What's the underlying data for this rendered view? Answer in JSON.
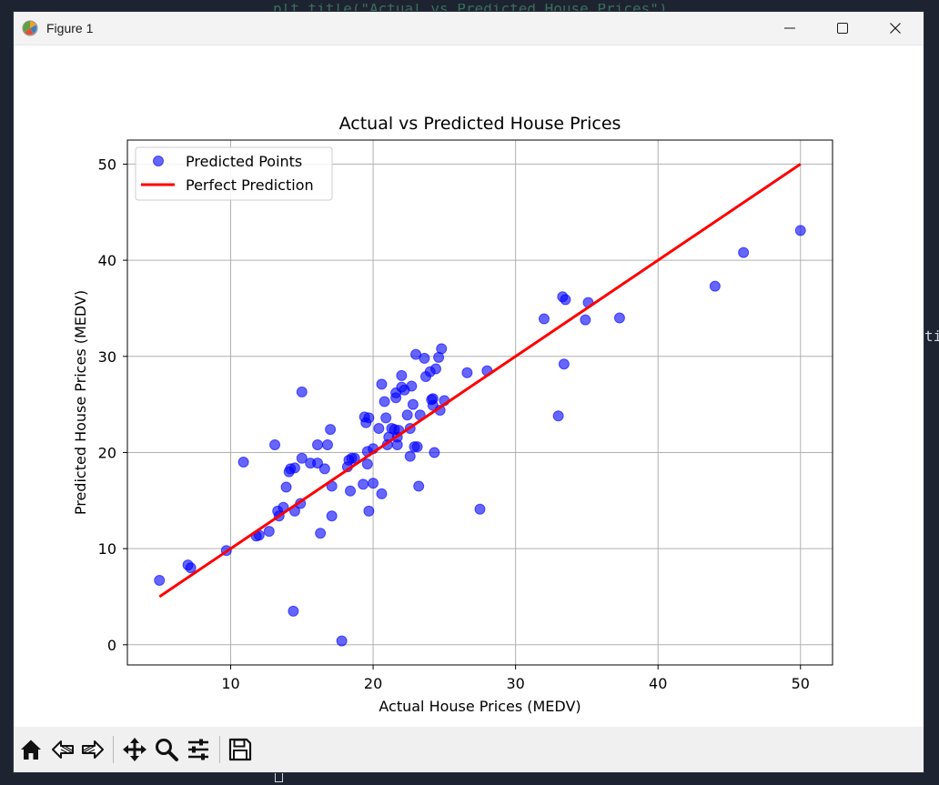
{
  "window": {
    "title": "Figure 1"
  },
  "background": {
    "code_top": "plt.title(\"Actual vs Predicted House Prices\")",
    "code_side": "ti"
  },
  "toolbar": {
    "tools": [
      "home-icon",
      "back-arrow-icon",
      "forward-arrow-icon",
      "pan-icon",
      "zoom-icon",
      "configure-subplots-icon",
      "save-icon"
    ]
  },
  "chart_data": {
    "type": "scatter",
    "title": "Actual vs Predicted House Prices",
    "xlabel": "Actual House Prices (MEDV)",
    "ylabel": "Predicted House Prices (MEDV)",
    "xlim": [
      2.75,
      52.25
    ],
    "ylim": [
      -2.1,
      52.5
    ],
    "xticks": [
      10,
      20,
      30,
      40,
      50
    ],
    "yticks": [
      0,
      10,
      20,
      30,
      40,
      50
    ],
    "grid": true,
    "legend_position": "upper-left",
    "legend": [
      {
        "label": "Predicted Points",
        "kind": "marker",
        "color": "#0000ff"
      },
      {
        "label": "Perfect Prediction",
        "kind": "line",
        "color": "#ff0000"
      }
    ],
    "series": [
      {
        "name": "Predicted Points",
        "kind": "scatter",
        "color": "#0000ff",
        "alpha": 0.6,
        "points": [
          [
            5.0,
            6.7
          ],
          [
            7.0,
            8.3
          ],
          [
            7.2,
            8.0
          ],
          [
            9.7,
            9.8
          ],
          [
            10.9,
            19.0
          ],
          [
            11.8,
            11.3
          ],
          [
            12.0,
            11.4
          ],
          [
            12.7,
            11.8
          ],
          [
            13.1,
            20.8
          ],
          [
            13.3,
            13.9
          ],
          [
            13.4,
            13.4
          ],
          [
            13.7,
            14.3
          ],
          [
            13.9,
            16.4
          ],
          [
            14.1,
            18.0
          ],
          [
            14.2,
            18.3
          ],
          [
            14.4,
            3.5
          ],
          [
            14.5,
            18.4
          ],
          [
            14.5,
            13.9
          ],
          [
            14.9,
            14.7
          ],
          [
            15.0,
            19.4
          ],
          [
            15.0,
            26.3
          ],
          [
            15.6,
            18.9
          ],
          [
            16.1,
            18.9
          ],
          [
            16.1,
            20.8
          ],
          [
            16.3,
            11.6
          ],
          [
            16.6,
            18.3
          ],
          [
            16.8,
            20.8
          ],
          [
            17.0,
            22.4
          ],
          [
            17.1,
            16.5
          ],
          [
            17.1,
            13.4
          ],
          [
            17.8,
            0.4
          ],
          [
            18.2,
            18.5
          ],
          [
            18.3,
            19.2
          ],
          [
            18.5,
            19.4
          ],
          [
            18.4,
            16.0
          ],
          [
            18.7,
            19.4
          ],
          [
            19.3,
            16.7
          ],
          [
            19.4,
            23.7
          ],
          [
            19.5,
            23.1
          ],
          [
            19.6,
            20.1
          ],
          [
            19.6,
            18.8
          ],
          [
            19.7,
            13.9
          ],
          [
            19.7,
            23.6
          ],
          [
            20.0,
            20.4
          ],
          [
            20.0,
            16.8
          ],
          [
            20.4,
            22.5
          ],
          [
            20.6,
            27.1
          ],
          [
            20.6,
            15.7
          ],
          [
            20.8,
            25.3
          ],
          [
            20.9,
            23.6
          ],
          [
            21.0,
            20.8
          ],
          [
            21.1,
            21.6
          ],
          [
            21.3,
            22.5
          ],
          [
            21.5,
            22.4
          ],
          [
            21.6,
            25.7
          ],
          [
            21.6,
            26.2
          ],
          [
            21.7,
            21.6
          ],
          [
            21.7,
            20.8
          ],
          [
            21.8,
            22.3
          ],
          [
            22.0,
            26.8
          ],
          [
            22.0,
            28.0
          ],
          [
            22.2,
            26.5
          ],
          [
            22.4,
            23.9
          ],
          [
            22.6,
            19.6
          ],
          [
            22.6,
            22.5
          ],
          [
            22.7,
            26.9
          ],
          [
            22.8,
            25.0
          ],
          [
            22.9,
            20.6
          ],
          [
            23.0,
            30.2
          ],
          [
            23.1,
            20.6
          ],
          [
            23.2,
            16.5
          ],
          [
            23.3,
            23.9
          ],
          [
            23.6,
            29.8
          ],
          [
            23.7,
            27.9
          ],
          [
            24.0,
            28.4
          ],
          [
            24.1,
            25.5
          ],
          [
            24.2,
            25.6
          ],
          [
            24.2,
            24.9
          ],
          [
            24.3,
            20.0
          ],
          [
            24.4,
            28.7
          ],
          [
            24.6,
            29.9
          ],
          [
            24.7,
            24.4
          ],
          [
            24.8,
            30.8
          ],
          [
            25.0,
            25.4
          ],
          [
            26.6,
            28.3
          ],
          [
            27.5,
            14.1
          ],
          [
            28.0,
            28.5
          ],
          [
            32.0,
            33.9
          ],
          [
            33.0,
            23.8
          ],
          [
            33.3,
            36.2
          ],
          [
            33.4,
            29.2
          ],
          [
            33.5,
            35.9
          ],
          [
            34.9,
            33.8
          ],
          [
            35.1,
            35.6
          ],
          [
            37.3,
            34.0
          ],
          [
            44.0,
            37.3
          ],
          [
            46.0,
            40.8
          ],
          [
            50.0,
            43.1
          ]
        ]
      },
      {
        "name": "Perfect Prediction",
        "kind": "line",
        "color": "#ff0000",
        "x": [
          5,
          50
        ],
        "y": [
          5,
          50
        ]
      }
    ]
  }
}
